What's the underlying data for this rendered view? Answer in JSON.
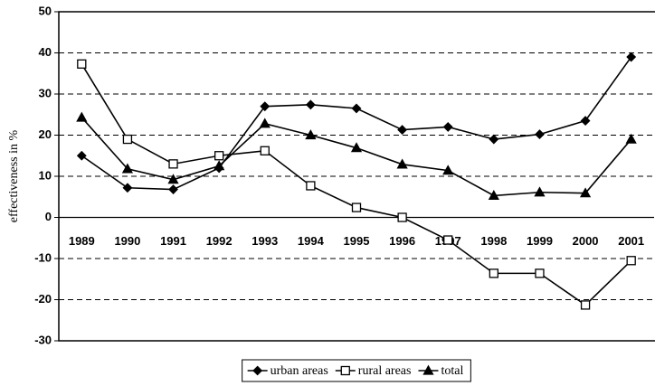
{
  "chart_data": {
    "type": "line",
    "y_label": "effectiveness in %",
    "categories": [
      "1989",
      "1990",
      "1991",
      "1992",
      "1993",
      "1994",
      "1995",
      "1996",
      "1997",
      "1998",
      "1999",
      "2000",
      "2001"
    ],
    "series": [
      {
        "name": "urban areas",
        "color": "#000000",
        "marker": "diamond",
        "values": [
          15,
          7.2,
          6.8,
          12,
          27,
          27.4,
          26.5,
          21.3,
          22,
          19,
          20.2,
          23.5,
          39
        ]
      },
      {
        "name": "rural areas",
        "color": "#000000",
        "marker": "square-open",
        "values": [
          37.3,
          19,
          13,
          15,
          16.2,
          7.7,
          2.4,
          0,
          -5.5,
          -13.6,
          -13.6,
          -21.3,
          -10.5
        ]
      },
      {
        "name": "total",
        "color": "#000000",
        "marker": "triangle",
        "values": [
          24.3,
          11.8,
          9.2,
          12.5,
          22.8,
          20,
          16.9,
          12.9,
          11.4,
          5.3,
          6.1,
          5.9,
          19
        ]
      }
    ],
    "ylim": [
      -30,
      50
    ],
    "yticks": [
      -30,
      -20,
      -10,
      0,
      10,
      20,
      30,
      40,
      50
    ],
    "grid": true,
    "legend": "bottom"
  }
}
